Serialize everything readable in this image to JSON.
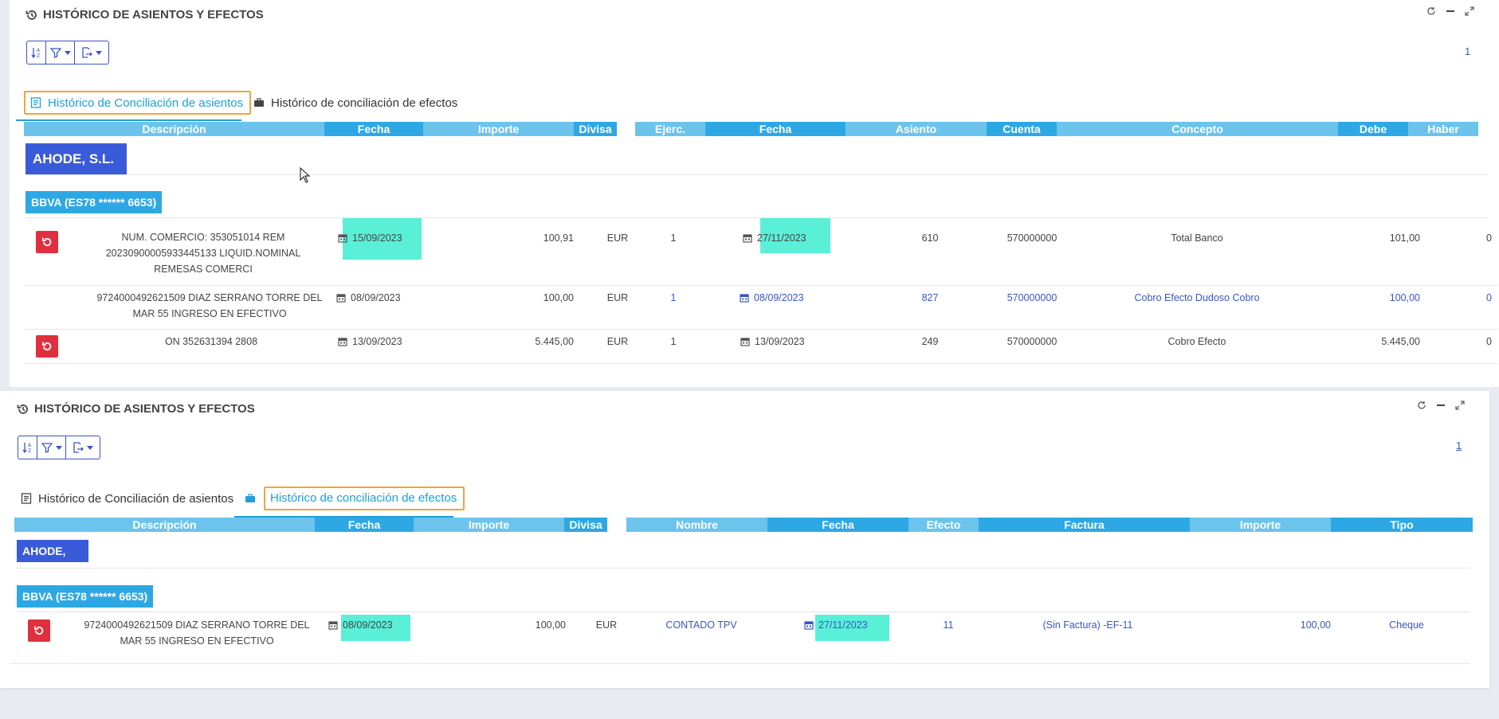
{
  "panel_top": {
    "title": "HISTÓRICO DE ASIENTOS Y EFECTOS",
    "page": "1",
    "tabs": [
      {
        "label": "Histórico de Conciliación de asientos",
        "active": true
      },
      {
        "label": "Histórico de conciliación de efectos",
        "active": false
      }
    ],
    "headers_left": [
      "Descripción",
      "Fecha",
      "Importe",
      "Divisa"
    ],
    "headers_right": [
      "Ejerc.",
      "Fecha",
      "Asiento",
      "Cuenta",
      "Concepto",
      "Debe",
      "Haber"
    ],
    "company": "AHODE, S.L.",
    "bank": "BBVA (ES78 ****** 6653)",
    "rows": [
      {
        "descripcion": "NUM. COMERCIO: 353051014 REM 20230900005933445133 LIQUID.NOMINAL REMESAS COMERCI",
        "fecha": "15/09/2023",
        "importe": "100,91",
        "divisa": "EUR",
        "ejerc": "1",
        "fecha2": "27/11/2023",
        "asiento": "610",
        "cuenta": "570000000",
        "concepto": "Total Banco",
        "debe": "101,00",
        "haber": "0"
      },
      {
        "descripcion": "9724000492621509 DIAZ SERRANO TORRE DEL MAR 55 INGRESO EN EFECTIVO",
        "fecha": "08/09/2023",
        "importe": "100,00",
        "divisa": "EUR",
        "ejerc": "1",
        "fecha2": "08/09/2023",
        "asiento": "827",
        "cuenta": "570000000",
        "concepto": "Cobro Efecto Dudoso Cobro",
        "debe": "100,00",
        "haber": "0"
      },
      {
        "descripcion": "ON 352631394 2808",
        "fecha": "13/09/2023",
        "importe": "5.445,00",
        "divisa": "EUR",
        "ejerc": "1",
        "fecha2": "13/09/2023",
        "asiento": "249",
        "cuenta": "570000000",
        "concepto": "Cobro Efecto",
        "debe": "5.445,00",
        "haber": "0"
      }
    ]
  },
  "panel_bottom": {
    "title": "HISTÓRICO DE ASIENTOS Y EFECTOS",
    "page": "1",
    "tabs": [
      {
        "label": "Histórico de Conciliación de asientos",
        "active": false
      },
      {
        "label": "Histórico de conciliación de efectos",
        "active": true
      }
    ],
    "headers_left": [
      "Descripción",
      "Fecha",
      "Importe",
      "Divisa"
    ],
    "headers_right": [
      "Nombre",
      "Fecha",
      "Efecto",
      "Factura",
      "Importe",
      "Tipo"
    ],
    "company": "AHODE, S.L.",
    "bank": "BBVA (ES78 ****** 6653)",
    "rows": [
      {
        "descripcion": "9724000492621509 DIAZ SERRANO TORRE DEL MAR 55 INGRESO EN EFECTIVO",
        "fecha": "08/09/2023",
        "importe": "100,00",
        "divisa": "EUR",
        "nombre": "CONTADO TPV",
        "fecha2": "27/11/2023",
        "efecto": "11",
        "factura": "(Sin Factura) -EF-11",
        "importe2": "100,00",
        "tipo": "Cheque"
      }
    ]
  },
  "colors": {
    "accent": "#3a55c8",
    "header_light": "#6cc4ec",
    "header_dark": "#2ea8e4",
    "company_group": "#3a5bd9",
    "highlight": "#5af0d8",
    "undo": "#e0303f",
    "tab_frame": "#f0a53c"
  },
  "icons": {
    "title": "history-icon",
    "sort": "sort-az-icon",
    "filter": "filter-icon",
    "export": "export-icon",
    "refresh": "refresh-icon",
    "minimize": "minimize-icon",
    "expand": "expand-icon",
    "tab_asientos": "list-icon",
    "tab_efectos": "briefcase-icon",
    "row_action": "undo-icon",
    "date": "calendar-icon"
  }
}
